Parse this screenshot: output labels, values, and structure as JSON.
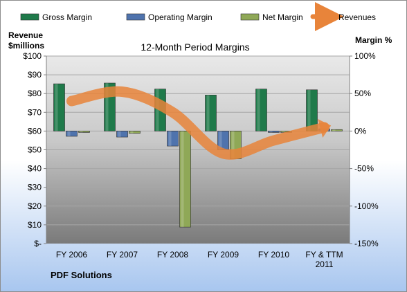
{
  "chart_data": {
    "type": "bar",
    "title": "12-Month Period Margins",
    "company": "PDF Solutions",
    "y_left_label": [
      "Revenue",
      "$millions"
    ],
    "y_right_label": "Margin %",
    "categories": [
      "FY 2006",
      "FY 2007",
      "FY 2008",
      "FY 2009",
      "FY 2010",
      "FY & TTM 2011"
    ],
    "left_axis": {
      "min": 0,
      "max": 100,
      "step": 10,
      "tick_labels": [
        "$-",
        "$10",
        "$20",
        "$30",
        "$40",
        "$50",
        "$60",
        "$70",
        "$80",
        "$90",
        "$100"
      ]
    },
    "right_axis": {
      "min": -150,
      "max": 100,
      "step": 50,
      "tick_labels": [
        "-150%",
        "-100%",
        "-50%",
        "0%",
        "50%",
        "100%"
      ]
    },
    "series": [
      {
        "name": "Gross Margin",
        "kind": "bar",
        "axis": "right",
        "color": "#1f7a4a",
        "values": [
          63,
          64,
          56,
          48,
          56,
          55
        ]
      },
      {
        "name": "Operating Margin",
        "kind": "bar",
        "axis": "right",
        "color": "#4f73ad",
        "values": [
          -7,
          -8,
          -20,
          -25,
          0,
          3
        ]
      },
      {
        "name": "Net Margin",
        "kind": "bar",
        "axis": "right",
        "color": "#8fa857",
        "values": [
          0,
          -3,
          -128,
          -37,
          0,
          2
        ]
      },
      {
        "name": "Revenues",
        "kind": "line",
        "axis": "left",
        "color": "#e8843a",
        "values": [
          76,
          81,
          70,
          48,
          55,
          62
        ]
      }
    ],
    "legend": {
      "position": "top"
    }
  }
}
